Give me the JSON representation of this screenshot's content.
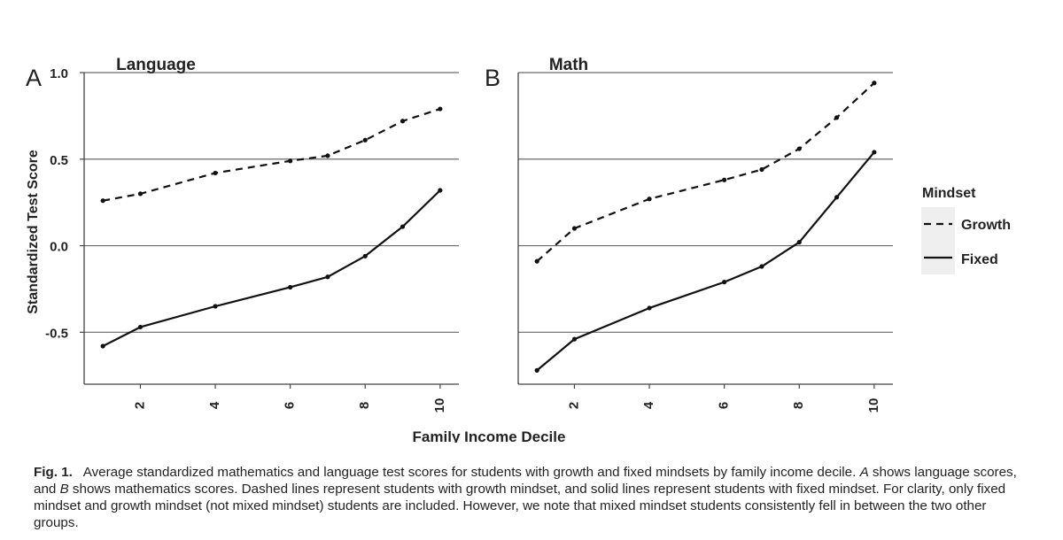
{
  "chart_data": [
    {
      "type": "line",
      "panel_label": "A",
      "title": "Language",
      "x": [
        1,
        2,
        4,
        6,
        7,
        8,
        9,
        10
      ],
      "xticks": [
        "2",
        "4",
        "6",
        "8",
        "10"
      ],
      "xlim": [
        0.5,
        10.5
      ],
      "ylim": [
        -0.8,
        1.0
      ],
      "yticks": [
        "1.0",
        "0.5",
        "0.0",
        "-0.5"
      ],
      "ylabel": "Standardized Test Score",
      "grid": "horizontal",
      "series": [
        {
          "name": "Growth",
          "style": "dashed",
          "values": [
            0.26,
            0.3,
            0.42,
            0.49,
            0.52,
            0.61,
            0.72,
            0.79
          ]
        },
        {
          "name": "Fixed",
          "style": "solid",
          "values": [
            -0.58,
            -0.47,
            -0.35,
            -0.24,
            -0.18,
            -0.06,
            0.11,
            0.32
          ]
        }
      ]
    },
    {
      "type": "line",
      "panel_label": "B",
      "title": "Math",
      "x": [
        1,
        2,
        4,
        6,
        7,
        8,
        9,
        10
      ],
      "xticks": [
        "2",
        "4",
        "6",
        "8",
        "10"
      ],
      "xlim": [
        0.5,
        10.5
      ],
      "ylim": [
        -0.8,
        1.0
      ],
      "grid": "horizontal",
      "series": [
        {
          "name": "Growth",
          "style": "dashed",
          "values": [
            -0.09,
            0.1,
            0.27,
            0.38,
            0.44,
            0.56,
            0.74,
            0.94
          ]
        },
        {
          "name": "Fixed",
          "style": "solid",
          "values": [
            -0.72,
            -0.54,
            -0.36,
            -0.21,
            -0.12,
            0.02,
            0.28,
            0.54
          ]
        }
      ]
    }
  ],
  "xlabel": "Family Income Decile",
  "legend": {
    "title": "Mindset",
    "position": "right",
    "items": [
      {
        "label": "Growth",
        "style": "dashed"
      },
      {
        "label": "Fixed",
        "style": "solid"
      }
    ]
  },
  "colors": {
    "line": "#111111",
    "grid": "#6a6a6a",
    "axis": "#444444",
    "legend_bg": "#efefef",
    "text": "#222222"
  },
  "caption": {
    "label": "Fig. 1.",
    "part1": "Average standardized mathematics and language test scores for students with growth and fixed mindsets by family income decile. ",
    "italic_a": "A",
    "part2": " shows language scores, and ",
    "italic_b": "B",
    "part3": " shows mathematics scores. Dashed lines represent students with growth mindset, and solid lines represent students with fixed mindset. For clarity, only fixed mindset and growth mindset (not mixed mindset) students are included. However, we note that mixed mindset students consistently fell in between the two other groups."
  }
}
